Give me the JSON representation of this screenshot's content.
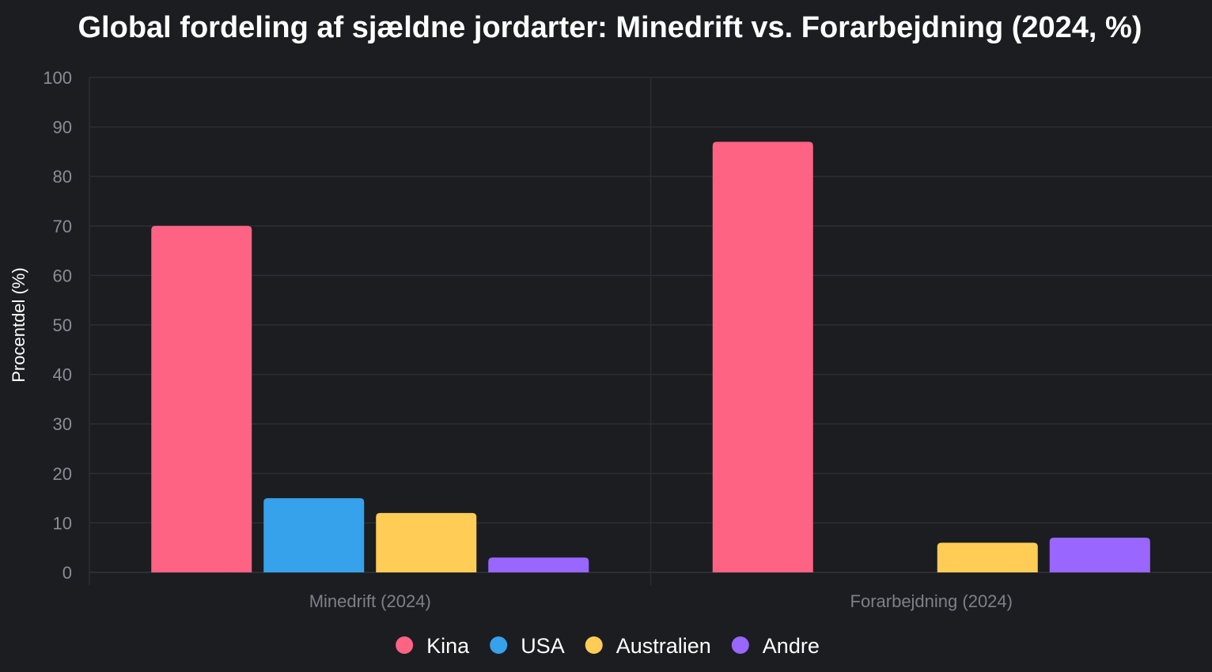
{
  "chart_data": {
    "type": "bar",
    "title": "Global fordeling af sjældne jordarter: Minedrift vs. Forarbejdning (2024, %)",
    "xlabel": "",
    "ylabel": "Procentdel (%)",
    "ylim": [
      0,
      100
    ],
    "yticks": [
      0,
      10,
      20,
      30,
      40,
      50,
      60,
      70,
      80,
      90,
      100
    ],
    "grid": true,
    "legend_position": "bottom",
    "categories": [
      "Minedrift (2024)",
      "Forarbejdning (2024)"
    ],
    "series": [
      {
        "name": "Kina",
        "color": "#ff6384",
        "values": [
          70,
          87
        ]
      },
      {
        "name": "USA",
        "color": "#36a2eb",
        "values": [
          15,
          0
        ]
      },
      {
        "name": "Australien",
        "color": "#ffcd56",
        "values": [
          12,
          6
        ]
      },
      {
        "name": "Andre",
        "color": "#9966ff",
        "values": [
          3,
          7
        ]
      }
    ]
  }
}
